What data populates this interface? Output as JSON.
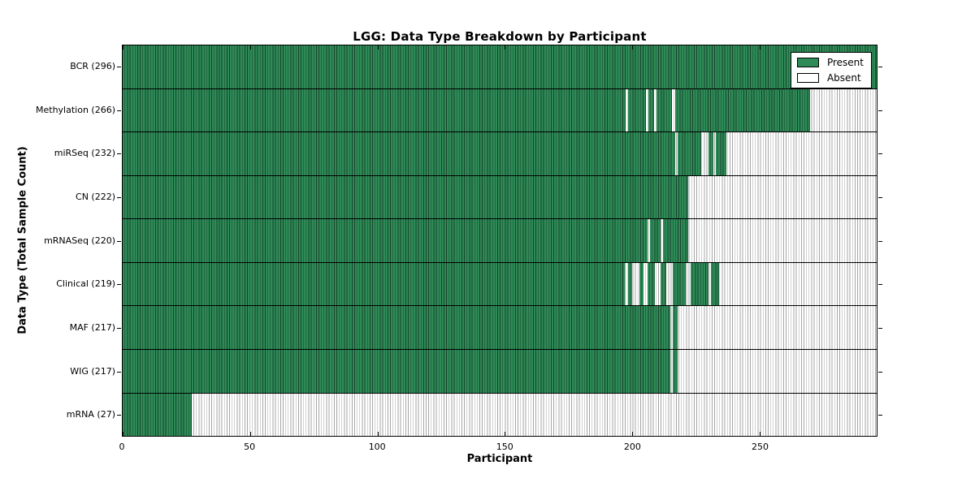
{
  "figure": {
    "title": "LGG: Data Type Breakdown by Participant",
    "xlabel": "Participant",
    "ylabel": "Data Type (Total Sample Count)"
  },
  "chart_data": {
    "type": "heatmap",
    "title": "LGG: Data Type Breakdown by Participant",
    "xlabel": "Participant",
    "ylabel": "Data Type (Total Sample Count)",
    "xlim": [
      0,
      296
    ],
    "xticks": [
      0,
      50,
      100,
      150,
      200,
      250
    ],
    "grid": false,
    "legend_position": "upper right",
    "legend": [
      {
        "label": "Present",
        "color": "#2e8b57"
      },
      {
        "label": "Absent",
        "color": "#ffffff"
      }
    ],
    "colors": {
      "present_fill": "#2e8b57",
      "present_edge": "#17432b",
      "absent_fill": "#ffffff",
      "absent_edge": "#a6a6a6",
      "frame": "#000000"
    },
    "rows": [
      {
        "label": "BCR (296)",
        "data_type": "BCR",
        "total": 296,
        "present_segments": [
          [
            0,
            296
          ]
        ]
      },
      {
        "label": "Methylation (266)",
        "data_type": "Methylation",
        "total": 266,
        "present_segments": [
          [
            0,
            197.5
          ],
          [
            198.5,
            205.5
          ],
          [
            206.5,
            208.5
          ],
          [
            209.5,
            215.5
          ],
          [
            217,
            270
          ]
        ]
      },
      {
        "label": "miRSeq (232)",
        "data_type": "miRSeq",
        "total": 232,
        "present_segments": [
          [
            0,
            217
          ],
          [
            218,
            227
          ],
          [
            230,
            232
          ],
          [
            233,
            237
          ]
        ]
      },
      {
        "label": "CN (222)",
        "data_type": "CN",
        "total": 222,
        "present_segments": [
          [
            0,
            222
          ]
        ]
      },
      {
        "label": "mRNASeq (220)",
        "data_type": "mRNASeq",
        "total": 220,
        "present_segments": [
          [
            0,
            206
          ],
          [
            207,
            211
          ],
          [
            212,
            222
          ]
        ]
      },
      {
        "label": "Clinical (219)",
        "data_type": "Clinical",
        "total": 219,
        "present_segments": [
          [
            0,
            197
          ],
          [
            198.5,
            200
          ],
          [
            203,
            204.5
          ],
          [
            206,
            209
          ],
          [
            211,
            213.5
          ],
          [
            216,
            221
          ],
          [
            223,
            230
          ],
          [
            231,
            234
          ]
        ]
      },
      {
        "label": "MAF (217)",
        "data_type": "MAF",
        "total": 217,
        "present_segments": [
          [
            0,
            215
          ],
          [
            216,
            218
          ]
        ]
      },
      {
        "label": "WIG (217)",
        "data_type": "WIG",
        "total": 217,
        "present_segments": [
          [
            0,
            215
          ],
          [
            216,
            218
          ]
        ]
      },
      {
        "label": "mRNA (27)",
        "data_type": "mRNA",
        "total": 27,
        "present_segments": [
          [
            0,
            27
          ]
        ]
      }
    ]
  }
}
